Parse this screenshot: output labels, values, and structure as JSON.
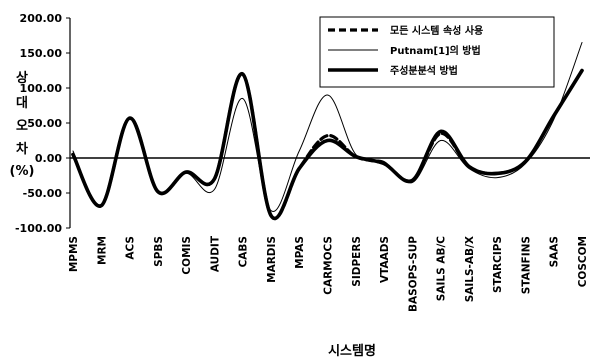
{
  "chart_data": {
    "type": "line",
    "title": "",
    "xlabel": "시스템명",
    "ylabel_chars": [
      "상",
      "대",
      "오",
      "차",
      "(%)"
    ],
    "ylim": [
      -100,
      200
    ],
    "yticks": [
      "200.00",
      "150.00",
      "100.00",
      "50.00",
      "0.00",
      "-50.00",
      "-100.00"
    ],
    "ytick_values": [
      200,
      150,
      100,
      50,
      0,
      -50,
      -100
    ],
    "categories": [
      "MPMS",
      "MRM",
      "ACS",
      "SPBS",
      "COMIS",
      "AUDIT",
      "CABS",
      "MARDIS",
      "MPAS",
      "CARMOCS",
      "SIDPERS",
      "VTAADS",
      "BASOPS-SUP",
      "SAILS AB/C",
      "SAILS-AB/X",
      "STARCIPS",
      "STANFINS",
      "SAAS",
      "COSCOM"
    ],
    "legend_position": "top-right",
    "series": [
      {
        "name": "모든 시스템 속성 사용",
        "style": "dashed",
        "color": "#000000",
        "values": [
          5,
          -68,
          57,
          -48,
          -20,
          -30,
          120,
          -82,
          -15,
          32,
          2,
          -8,
          -32,
          35,
          -12,
          -22,
          -5,
          60,
          125
        ]
      },
      {
        "name": "Putnam[1]의 방법",
        "style": "thin",
        "color": "#000000",
        "values": [
          10,
          -70,
          55,
          -50,
          -22,
          -45,
          85,
          -75,
          10,
          90,
          5,
          -5,
          -35,
          25,
          -15,
          -28,
          -8,
          55,
          165
        ]
      },
      {
        "name": "주성분분석 방법",
        "style": "thick",
        "color": "#000000",
        "values": [
          5,
          -68,
          57,
          -48,
          -20,
          -30,
          120,
          -82,
          -15,
          25,
          2,
          -8,
          -32,
          38,
          -12,
          -22,
          -5,
          60,
          125
        ]
      }
    ]
  }
}
